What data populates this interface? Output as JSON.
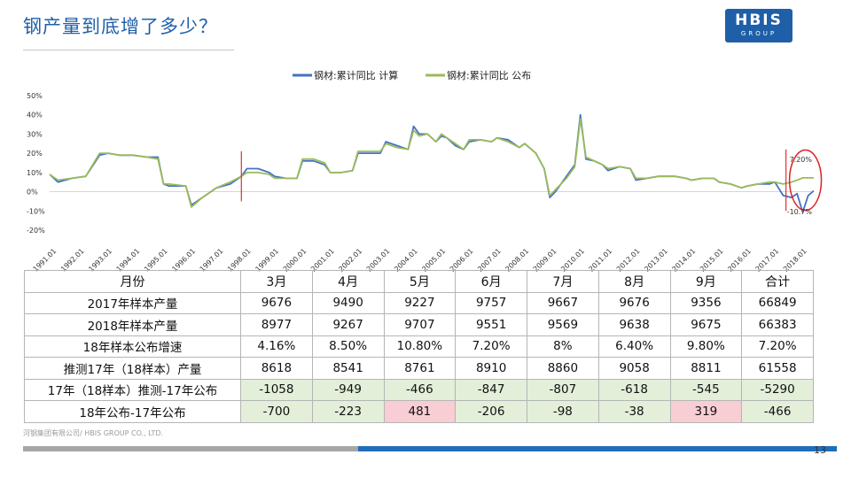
{
  "page": {
    "title": "钢产量到底增了多少？",
    "logo_main": "HBIS",
    "logo_sub": "GROUP",
    "footer": "河钢集团有限公司/ HBIS GROUP CO., LTD.",
    "page_number": "13"
  },
  "chart_data": {
    "type": "line",
    "title": "",
    "xlabel": "",
    "ylabel": "",
    "ylim": [
      -20,
      50
    ],
    "yticks": [
      50,
      40,
      30,
      20,
      10,
      0,
      -10,
      -20
    ],
    "ytick_labels": [
      "50%",
      "40%",
      "30%",
      "20%",
      "10%",
      "0%",
      "-10%",
      "-20%"
    ],
    "categories": [
      "1991.01",
      "1992.01",
      "1993.01",
      "1994.01",
      "1995.01",
      "1996.01",
      "1997.01",
      "1998.01",
      "1999.01",
      "2000.01",
      "2001.01",
      "2002.01",
      "2003.01",
      "2004.01",
      "2005.01",
      "2006.01",
      "2007.01",
      "2008.01",
      "2009.01",
      "2010.01",
      "2011.01",
      "2012.01",
      "2013.01",
      "2014.01",
      "2015.01",
      "2016.01",
      "2017.01",
      "2018.01"
    ],
    "annotations": [
      "7.20%",
      "-10.7%"
    ],
    "series": [
      {
        "name": "钢材:累计同比 计算",
        "color": "#4472c4",
        "x": [
          1991,
          1991.3,
          1991.8,
          1992.3,
          1992.8,
          1993.1,
          1993.5,
          1994.0,
          1994.5,
          1994.9,
          1995.1,
          1995.3,
          1995.9,
          1996.1,
          1996.5,
          1997.0,
          1997.5,
          1997.9,
          1998.1,
          1998.5,
          1998.9,
          1999.1,
          1999.5,
          1999.9,
          2000.1,
          2000.5,
          2000.9,
          2001.1,
          2001.5,
          2001.9,
          2002.1,
          2002.5,
          2002.9,
          2003.1,
          2003.5,
          2003.9,
          2004.1,
          2004.3,
          2004.6,
          2004.9,
          2005.1,
          2005.3,
          2005.6,
          2005.9,
          2006.1,
          2006.5,
          2006.9,
          2007.1,
          2007.5,
          2007.9,
          2008.1,
          2008.5,
          2008.8,
          2009.0,
          2009.2,
          2009.6,
          2009.9,
          2010.1,
          2010.3,
          2010.6,
          2010.9,
          2011.1,
          2011.5,
          2011.9,
          2012.1,
          2012.5,
          2012.9,
          2013.1,
          2013.5,
          2013.9,
          2014.1,
          2014.5,
          2014.9,
          2015.1,
          2015.5,
          2015.9,
          2016.1,
          2016.5,
          2016.9,
          2017.1,
          2017.4,
          2017.7,
          2017.9,
          2018.1,
          2018.3,
          2018.5
        ],
        "values": [
          9,
          5,
          7,
          8,
          19,
          20,
          19,
          19,
          18,
          18,
          4,
          3,
          3,
          -7,
          -3,
          2,
          4,
          8,
          12,
          12,
          10,
          8,
          7,
          7,
          16,
          16,
          14,
          10,
          10,
          11,
          20,
          20,
          20,
          26,
          24,
          22,
          34,
          30,
          30,
          26,
          29,
          28,
          24,
          22,
          26,
          27,
          26,
          28,
          27,
          23,
          25,
          20,
          12,
          -3,
          0,
          8,
          14,
          40,
          17,
          16,
          14,
          11,
          13,
          12,
          6,
          7,
          8,
          8,
          8,
          7,
          6,
          7,
          7,
          5,
          4,
          2,
          3,
          4,
          4,
          5,
          -2,
          -3,
          -1,
          -10.7,
          -2,
          0.5
        ]
      },
      {
        "name": "钢材:累计同比 公布",
        "color": "#9bbb59",
        "x": [
          1991,
          1991.3,
          1991.8,
          1992.3,
          1992.8,
          1993.1,
          1993.5,
          1994.0,
          1994.5,
          1994.9,
          1995.1,
          1995.3,
          1995.9,
          1996.1,
          1996.5,
          1997.0,
          1997.5,
          1997.9,
          1998.1,
          1998.5,
          1998.9,
          1999.1,
          1999.5,
          1999.9,
          2000.1,
          2000.5,
          2000.9,
          2001.1,
          2001.5,
          2001.9,
          2002.1,
          2002.5,
          2002.9,
          2003.1,
          2003.5,
          2003.9,
          2004.1,
          2004.3,
          2004.6,
          2004.9,
          2005.1,
          2005.3,
          2005.6,
          2005.9,
          2006.1,
          2006.5,
          2006.9,
          2007.1,
          2007.5,
          2007.9,
          2008.1,
          2008.5,
          2008.8,
          2009.0,
          2009.2,
          2009.6,
          2009.9,
          2010.1,
          2010.3,
          2010.6,
          2010.9,
          2011.1,
          2011.5,
          2011.9,
          2012.1,
          2012.5,
          2012.9,
          2013.1,
          2013.5,
          2013.9,
          2014.1,
          2014.5,
          2014.9,
          2015.1,
          2015.5,
          2015.9,
          2016.1,
          2016.5,
          2016.9,
          2017.1,
          2017.4,
          2017.7,
          2017.9,
          2018.1,
          2018.3,
          2018.5
        ],
        "values": [
          9,
          6,
          7,
          8,
          20,
          20,
          19,
          19,
          18,
          17,
          4,
          4,
          3,
          -8,
          -3,
          2,
          5,
          8,
          10,
          10,
          9,
          7,
          7,
          7,
          17,
          17,
          15,
          10,
          10,
          11,
          21,
          21,
          21,
          25,
          23,
          22,
          32,
          29,
          30,
          26,
          30,
          28,
          25,
          22,
          27,
          27,
          26,
          28,
          26,
          23,
          25,
          20,
          12,
          -2,
          1,
          7,
          13,
          38,
          18,
          16,
          14,
          12,
          13,
          12,
          7,
          7,
          8,
          8,
          8,
          7,
          6,
          7,
          7,
          5,
          4,
          2,
          3,
          4,
          5,
          5,
          4,
          5,
          6,
          7.2,
          7.2,
          7.2
        ]
      }
    ]
  },
  "table": {
    "header": [
      "月份",
      "3月",
      "4月",
      "5月",
      "6月",
      "7月",
      "8月",
      "9月",
      "合计"
    ],
    "rows": [
      [
        "2017年样本产量",
        "9676",
        "9490",
        "9227",
        "9757",
        "9667",
        "9676",
        "9356",
        "66849"
      ],
      [
        "2018年样本产量",
        "8977",
        "9267",
        "9707",
        "9551",
        "9569",
        "9638",
        "9675",
        "66383"
      ],
      [
        "18年样本公布增速",
        "4.16%",
        "8.50%",
        "10.80%",
        "7.20%",
        "8%",
        "6.40%",
        "9.80%",
        "7.20%"
      ],
      [
        "推测17年（18样本）产量",
        "8618",
        "8541",
        "8761",
        "8910",
        "8860",
        "9058",
        "8811",
        "61558"
      ],
      [
        "17年（18样本）推测-17年公布",
        "-1058",
        "-949",
        "-466",
        "-847",
        "-807",
        "-618",
        "-545",
        "-5290"
      ],
      [
        "18年公布-17年公布",
        "-700",
        "-223",
        "481",
        "-206",
        "-98",
        "-38",
        "319",
        "-466"
      ]
    ]
  }
}
